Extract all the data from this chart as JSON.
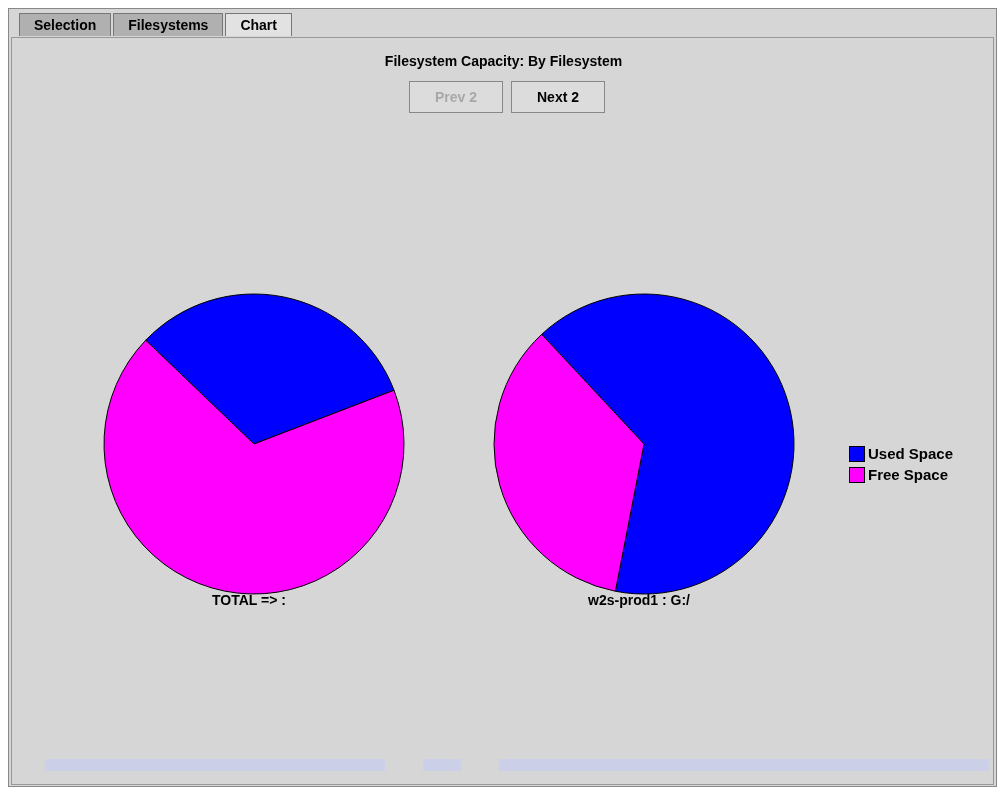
{
  "chart_data": {
    "type": "pie",
    "title": "Filesystem Capacity: By Filesystem",
    "categories": [
      "Used Space",
      "Free Space"
    ],
    "colors": [
      "#0000ff",
      "#ff00ff"
    ],
    "legend": "right",
    "series": [
      {
        "name": "TOTAL => :",
        "values": [
          32,
          68
        ]
      },
      {
        "name": "w2s-prod1 : G:/",
        "values": [
          65,
          35
        ]
      }
    ],
    "annotations": [
      "Selection",
      "Filesystems",
      "Chart",
      "Prev 2",
      "Next 2"
    ]
  }
}
